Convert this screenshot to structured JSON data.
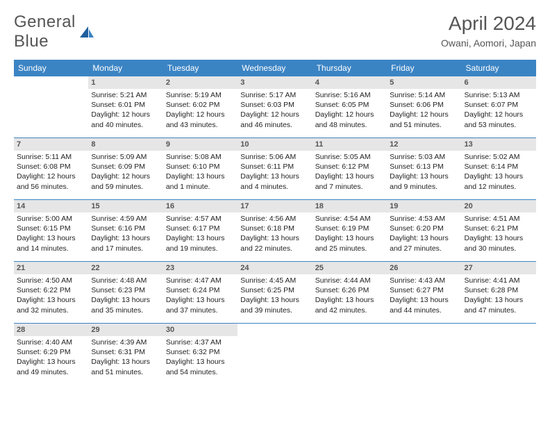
{
  "logo": {
    "text1": "General",
    "text2": "Blue"
  },
  "title": "April 2024",
  "subtitle": "Owani, Aomori, Japan",
  "colors": {
    "accent": "#3b84c4",
    "header_bg": "#e6e6e6",
    "text": "#333333"
  },
  "weekdays": [
    "Sunday",
    "Monday",
    "Tuesday",
    "Wednesday",
    "Thursday",
    "Friday",
    "Saturday"
  ],
  "weeks": [
    [
      null,
      {
        "n": "1",
        "sr": "5:21 AM",
        "ss": "6:01 PM",
        "dl": "12 hours and 40 minutes."
      },
      {
        "n": "2",
        "sr": "5:19 AM",
        "ss": "6:02 PM",
        "dl": "12 hours and 43 minutes."
      },
      {
        "n": "3",
        "sr": "5:17 AM",
        "ss": "6:03 PM",
        "dl": "12 hours and 46 minutes."
      },
      {
        "n": "4",
        "sr": "5:16 AM",
        "ss": "6:05 PM",
        "dl": "12 hours and 48 minutes."
      },
      {
        "n": "5",
        "sr": "5:14 AM",
        "ss": "6:06 PM",
        "dl": "12 hours and 51 minutes."
      },
      {
        "n": "6",
        "sr": "5:13 AM",
        "ss": "6:07 PM",
        "dl": "12 hours and 53 minutes."
      }
    ],
    [
      {
        "n": "7",
        "sr": "5:11 AM",
        "ss": "6:08 PM",
        "dl": "12 hours and 56 minutes."
      },
      {
        "n": "8",
        "sr": "5:09 AM",
        "ss": "6:09 PM",
        "dl": "12 hours and 59 minutes."
      },
      {
        "n": "9",
        "sr": "5:08 AM",
        "ss": "6:10 PM",
        "dl": "13 hours and 1 minute."
      },
      {
        "n": "10",
        "sr": "5:06 AM",
        "ss": "6:11 PM",
        "dl": "13 hours and 4 minutes."
      },
      {
        "n": "11",
        "sr": "5:05 AM",
        "ss": "6:12 PM",
        "dl": "13 hours and 7 minutes."
      },
      {
        "n": "12",
        "sr": "5:03 AM",
        "ss": "6:13 PM",
        "dl": "13 hours and 9 minutes."
      },
      {
        "n": "13",
        "sr": "5:02 AM",
        "ss": "6:14 PM",
        "dl": "13 hours and 12 minutes."
      }
    ],
    [
      {
        "n": "14",
        "sr": "5:00 AM",
        "ss": "6:15 PM",
        "dl": "13 hours and 14 minutes."
      },
      {
        "n": "15",
        "sr": "4:59 AM",
        "ss": "6:16 PM",
        "dl": "13 hours and 17 minutes."
      },
      {
        "n": "16",
        "sr": "4:57 AM",
        "ss": "6:17 PM",
        "dl": "13 hours and 19 minutes."
      },
      {
        "n": "17",
        "sr": "4:56 AM",
        "ss": "6:18 PM",
        "dl": "13 hours and 22 minutes."
      },
      {
        "n": "18",
        "sr": "4:54 AM",
        "ss": "6:19 PM",
        "dl": "13 hours and 25 minutes."
      },
      {
        "n": "19",
        "sr": "4:53 AM",
        "ss": "6:20 PM",
        "dl": "13 hours and 27 minutes."
      },
      {
        "n": "20",
        "sr": "4:51 AM",
        "ss": "6:21 PM",
        "dl": "13 hours and 30 minutes."
      }
    ],
    [
      {
        "n": "21",
        "sr": "4:50 AM",
        "ss": "6:22 PM",
        "dl": "13 hours and 32 minutes."
      },
      {
        "n": "22",
        "sr": "4:48 AM",
        "ss": "6:23 PM",
        "dl": "13 hours and 35 minutes."
      },
      {
        "n": "23",
        "sr": "4:47 AM",
        "ss": "6:24 PM",
        "dl": "13 hours and 37 minutes."
      },
      {
        "n": "24",
        "sr": "4:45 AM",
        "ss": "6:25 PM",
        "dl": "13 hours and 39 minutes."
      },
      {
        "n": "25",
        "sr": "4:44 AM",
        "ss": "6:26 PM",
        "dl": "13 hours and 42 minutes."
      },
      {
        "n": "26",
        "sr": "4:43 AM",
        "ss": "6:27 PM",
        "dl": "13 hours and 44 minutes."
      },
      {
        "n": "27",
        "sr": "4:41 AM",
        "ss": "6:28 PM",
        "dl": "13 hours and 47 minutes."
      }
    ],
    [
      {
        "n": "28",
        "sr": "4:40 AM",
        "ss": "6:29 PM",
        "dl": "13 hours and 49 minutes."
      },
      {
        "n": "29",
        "sr": "4:39 AM",
        "ss": "6:31 PM",
        "dl": "13 hours and 51 minutes."
      },
      {
        "n": "30",
        "sr": "4:37 AM",
        "ss": "6:32 PM",
        "dl": "13 hours and 54 minutes."
      },
      null,
      null,
      null,
      null
    ]
  ],
  "labels": {
    "sunrise": "Sunrise:",
    "sunset": "Sunset:",
    "daylight": "Daylight:"
  }
}
